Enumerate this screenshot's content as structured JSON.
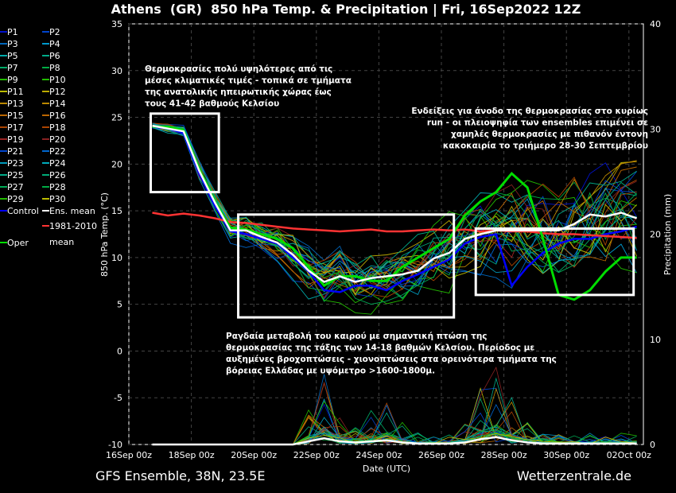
{
  "chart_data": {
    "type": "line",
    "title": "Athens  (GR)  850 hPa Temp. & Precipitation | Fri, 16Sep2022 12Z",
    "xlabel": "Date (UTC)",
    "ylabel": "850 hPa Temp. (°C)",
    "y2label": "Precipitation (mm)",
    "ylim": [
      -10,
      35
    ],
    "y2lim": [
      0,
      40
    ],
    "yticks": [
      35,
      30,
      25,
      20,
      15,
      10,
      5,
      0,
      -5,
      -10
    ],
    "y2ticks": [
      40,
      30,
      20,
      10,
      0
    ],
    "xticks": [
      "16Sep 00z",
      "18Sep 00z",
      "20Sep 00z",
      "22Sep 00z",
      "24Sep 00z",
      "26Sep 00z",
      "28Sep 00z",
      "30Sep 00z",
      "02Oct 00z"
    ],
    "xlim_days": [
      0,
      16.5
    ],
    "grid": true,
    "x_days": [
      0.75,
      1.25,
      1.75,
      2.25,
      2.75,
      3.25,
      3.75,
      4.25,
      4.75,
      5.25,
      5.75,
      6.25,
      6.75,
      7.25,
      7.75,
      8.25,
      8.75,
      9.25,
      9.75,
      10.25,
      10.75,
      11.25,
      11.75,
      12.25,
      12.75,
      13.25,
      13.75,
      14.25,
      14.75,
      15.25,
      15.75,
      16.25
    ],
    "series": [
      {
        "name": "Ens. mean",
        "color": "#ffffff",
        "values": [
          24.1,
          23.8,
          23.5,
          19.3,
          15.9,
          12.9,
          12.9,
          12.2,
          11.6,
          10.3,
          8.6,
          7.4,
          8.0,
          7.4,
          7.8,
          8.0,
          8.2,
          8.6,
          9.9,
          10.5,
          12.0,
          12.5,
          12.9,
          12.9,
          12.9,
          12.9,
          12.9,
          13.6,
          14.6,
          14.4,
          14.8,
          14.2
        ]
      },
      {
        "name": "Control",
        "color": "#0000ff",
        "values": [
          24.0,
          23.8,
          23.3,
          19.0,
          15.5,
          12.8,
          12.5,
          12.0,
          11.5,
          10.0,
          8.5,
          6.5,
          6.3,
          7.0,
          7.0,
          6.5,
          7.5,
          8.2,
          9.0,
          9.8,
          11.5,
          12.2,
          12.5,
          7.0,
          9.0,
          10.5,
          11.5,
          12.0,
          12.0,
          12.5,
          12.8,
          13.3
        ]
      },
      {
        "name": "Oper",
        "color": "#00dd00",
        "values": [
          24.0,
          24.0,
          23.6,
          19.5,
          16.0,
          13.2,
          13.0,
          12.5,
          12.0,
          11.0,
          9.0,
          7.0,
          8.0,
          8.0,
          7.5,
          7.5,
          9.0,
          10.0,
          11.0,
          12.0,
          14.5,
          16.0,
          17.0,
          19.0,
          17.5,
          12.0,
          6.0,
          5.5,
          6.5,
          8.5,
          10.0,
          10.0
        ]
      },
      {
        "name": "1981-2010 mean",
        "color": "#ff3333",
        "values": [
          14.8,
          14.5,
          14.7,
          14.5,
          14.2,
          13.8,
          13.7,
          13.5,
          13.3,
          13.1,
          13.0,
          12.9,
          12.8,
          12.9,
          13.0,
          12.8,
          12.8,
          12.9,
          13.0,
          12.9,
          13.0,
          12.8,
          12.9,
          12.8,
          12.8,
          12.6,
          12.5,
          12.5,
          12.4,
          12.3,
          12.2,
          12.1
        ]
      }
    ],
    "precip_ens_mean": [
      0,
      0,
      0,
      0,
      0,
      0,
      0,
      0,
      0,
      0,
      0.3,
      0.6,
      0.3,
      0.2,
      0.3,
      0.4,
      0.2,
      0.1,
      0.1,
      0.1,
      0.2,
      0.5,
      0.7,
      0.4,
      0.2,
      0.1,
      0.1,
      0.1,
      0.1,
      0.1,
      0.1,
      0.1
    ],
    "members_spread": [
      0.3,
      0.4,
      0.5,
      0.8,
      1.0,
      1.0,
      1.2,
      1.3,
      1.5,
      1.6,
      1.8,
      2.0,
      2.0,
      2.0,
      2.0,
      2.1,
      2.2,
      2.3,
      2.4,
      2.5,
      2.6,
      2.8,
      3.0,
      3.2,
      3.3,
      3.4,
      3.5,
      3.6,
      3.7,
      3.8,
      3.9,
      4.0
    ],
    "legend": {
      "members": [
        "P1",
        "P2",
        "P3",
        "P4",
        "P5",
        "P6",
        "P7",
        "P8",
        "P9",
        "P10",
        "P11",
        "P12",
        "P13",
        "P14",
        "P15",
        "P16",
        "P17",
        "P18",
        "P19",
        "P20",
        "P21",
        "P22",
        "P23",
        "P24",
        "P25",
        "P26",
        "P27",
        "P28",
        "P29",
        "P30"
      ],
      "member_colors": [
        "#0011cc",
        "#0044cc",
        "#0066bb",
        "#0099cc",
        "#00aaaa",
        "#00aa88",
        "#00aa66",
        "#00aa44",
        "#22bb00",
        "#22bb00",
        "#bbbb00",
        "#bbaa00",
        "#bb8800",
        "#bb8800",
        "#bb6600",
        "#bb6600",
        "#aa4400",
        "#aa4400",
        "#992222",
        "#882222",
        "#0044cc",
        "#0066cc",
        "#0099bb",
        "#00aabb",
        "#00aa88",
        "#00aa77",
        "#00aa55",
        "#00aa44",
        "#22bb00",
        "#bbbb00"
      ],
      "control": "Control",
      "ens_mean": "Ens. mean",
      "clim_line1": "1981-2010",
      "clim_line2": "mean",
      "oper": "Oper"
    },
    "annotation_boxes": [
      {
        "t0": 0.7,
        "t1": 2.88,
        "T0": 17.0,
        "T1": 25.4
      },
      {
        "t0": 3.5,
        "t1": 10.4,
        "T0": 3.6,
        "T1": 14.6
      },
      {
        "t0": 11.1,
        "t1": 16.15,
        "T0": 6.0,
        "T1": 13.1
      }
    ],
    "annotations": {
      "a1": [
        "Θερμοκρασίες πολύ υψηλότερες από τις",
        "μέσες κλιματικές τιμές - τοπικά σε τμήματα",
        "της ανατολικής ηπειρωτικής χώρας έως",
        "τους 41-42 βαθμούς Κελσίου"
      ],
      "a2": [
        "Ενδείξεις για άνοδο της θερμοκρασίας στο κυρίως",
        "run - οι πλειοψηφία των ensembles επιμένει σε",
        "χαμηλές θερμοκρασίες με πιθανόν έντονη",
        "κακοκαιρία το τριήμερο 28-30 Σεπτεμβρίου"
      ],
      "a3": [
        "Ραγδαία μεταβολή του καιρού με σημαντική πτώση της",
        "θερμοκρασίας της τάξης των 14-18 βαθμών Κελσίου. Περίοδος με",
        "αυξημένες βροχοπτώσεις - χιονοπτώσεις στα ορεινότερα τμήματα της",
        "βόρειας Ελλάδας με υψόμετρο >1600-1800μ."
      ]
    }
  },
  "footer": {
    "model": "GFS Ensemble, 38N, 23.5E",
    "site": "Wetterzentrale.de"
  }
}
